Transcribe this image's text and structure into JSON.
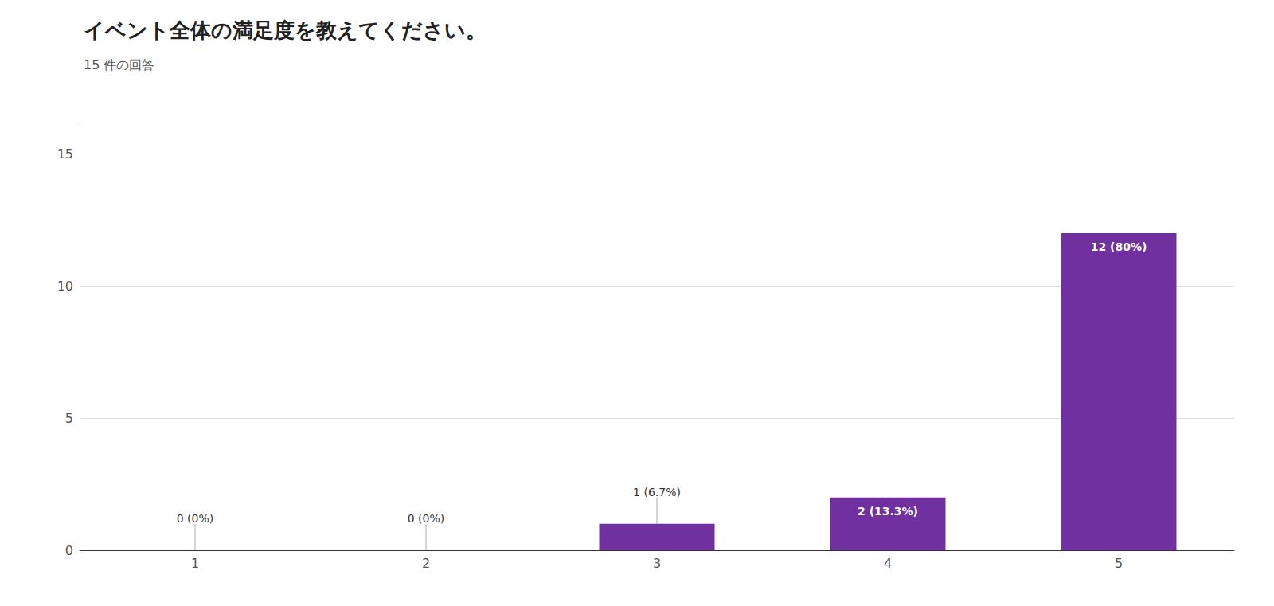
{
  "chart_data": {
    "type": "bar",
    "title": "イベント全体の満足度を教えてください。",
    "subtitle": "15 件の回答",
    "categories": [
      "1",
      "2",
      "3",
      "4",
      "5"
    ],
    "values": [
      0,
      0,
      1,
      2,
      12
    ],
    "value_labels": [
      "0 (0%)",
      "0 (0%)",
      "1 (6.7%)",
      "2 (13.3%)",
      "12 (80%)"
    ],
    "data_labels": true,
    "color": "#7030a0",
    "ylim": [
      0,
      16
    ],
    "yticks": [
      0,
      5,
      10,
      15
    ],
    "grid": true
  }
}
